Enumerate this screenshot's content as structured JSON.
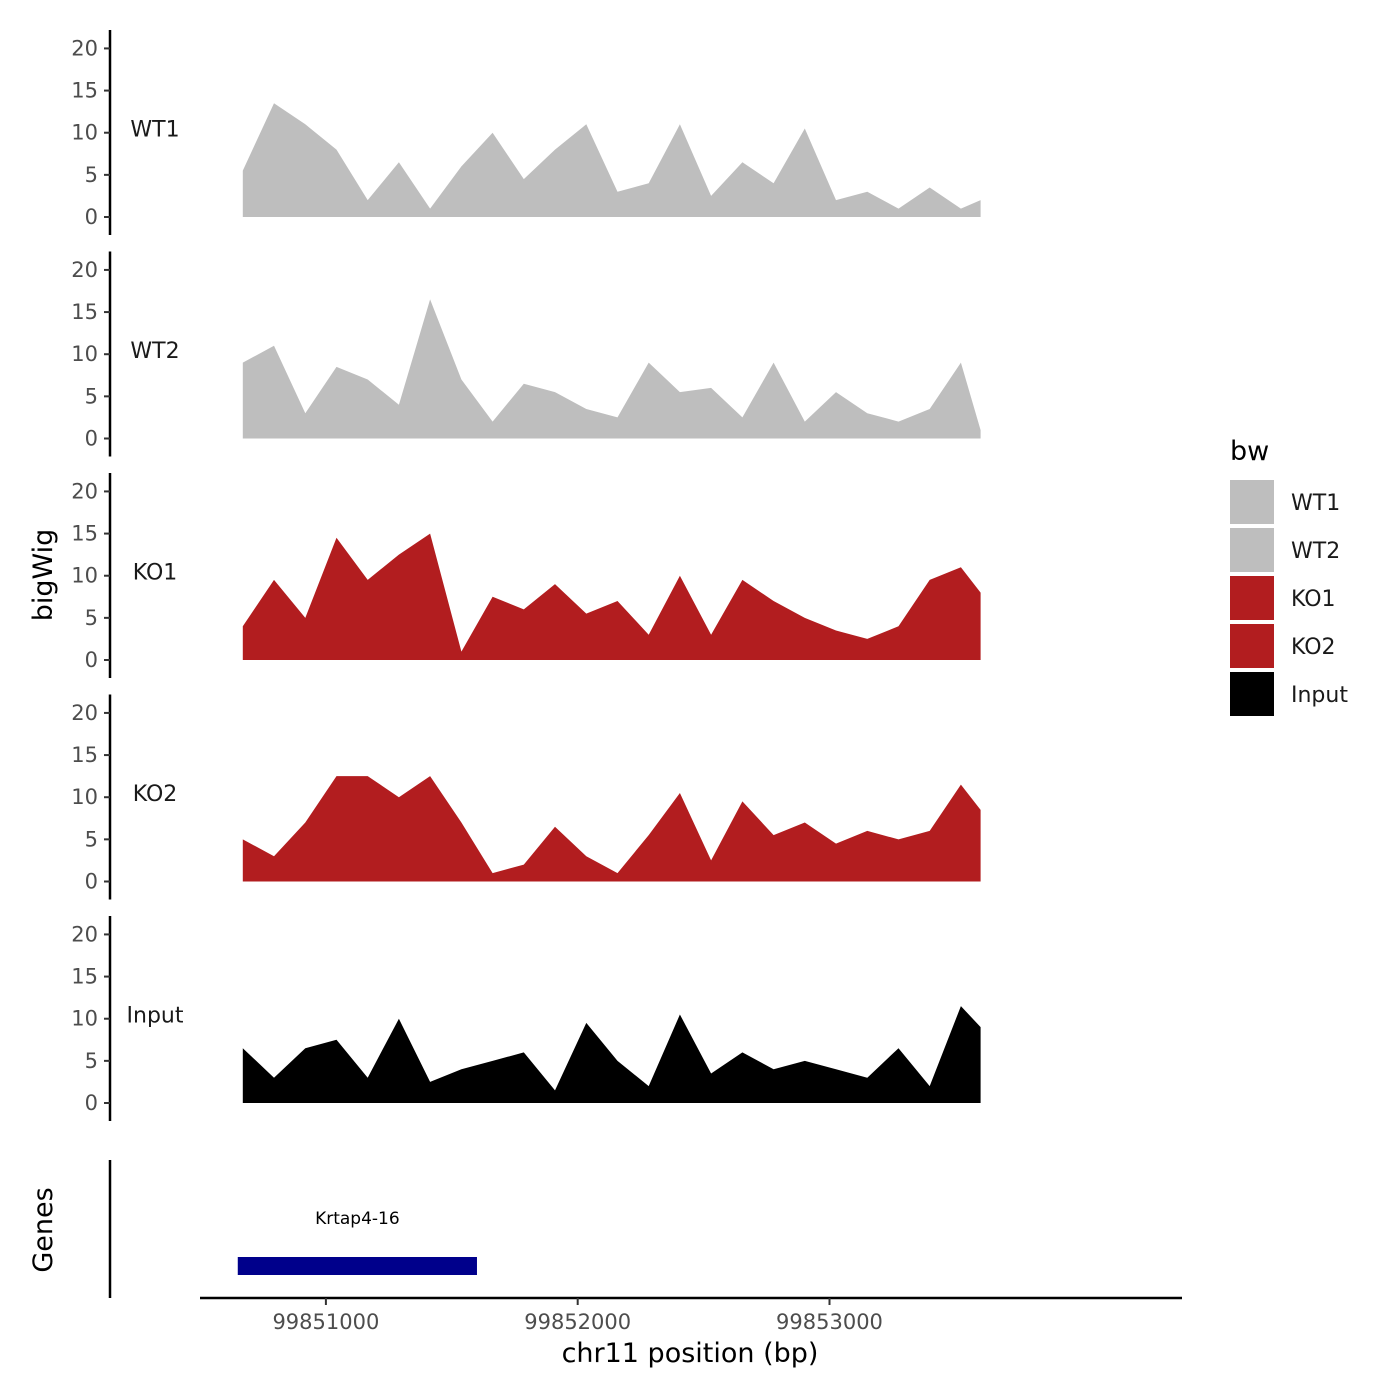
{
  "chart_data": {
    "type": "area",
    "xlabel": "chr11 position (bp)",
    "ylabel": "bigWig",
    "genes_label": "Genes",
    "xlim": [
      99850500,
      99854400
    ],
    "ylim": [
      0,
      21
    ],
    "y_ticks": [
      "0",
      "5",
      "10",
      "15",
      "20"
    ],
    "x_ticks": [
      {
        "value": 99851000,
        "label": "99851000"
      },
      {
        "value": 99852000,
        "label": "99852000"
      },
      {
        "value": 99853000,
        "label": "99853000"
      }
    ],
    "legend": {
      "title": "bw",
      "position": "right",
      "entries": [
        {
          "label": "WT1",
          "color": "#bebebe"
        },
        {
          "label": "WT2",
          "color": "#bebebe"
        },
        {
          "label": "KO1",
          "color": "#b21d1f"
        },
        {
          "label": "KO2",
          "color": "#b21d1f"
        },
        {
          "label": "Input",
          "color": "#000000"
        }
      ]
    },
    "x": [
      99850670,
      99850794,
      99850918,
      99851042,
      99851166,
      99851290,
      99851414,
      99851538,
      99851662,
      99851786,
      99851910,
      99852034,
      99852158,
      99852282,
      99852406,
      99852530,
      99852654,
      99852778,
      99852902,
      99853026,
      99853150,
      99853274,
      99853398,
      99853522,
      99853600
    ],
    "series": [
      {
        "name": "WT1",
        "color": "#bebebe",
        "values": [
          5.5,
          13.5,
          11.0,
          8.0,
          2.0,
          6.5,
          1.0,
          6.0,
          10.0,
          4.5,
          8.0,
          11.0,
          3.0,
          4.0,
          11.0,
          2.5,
          6.5,
          4.0,
          10.5,
          2.0,
          3.0,
          1.0,
          3.5,
          1.0,
          2.0
        ]
      },
      {
        "name": "WT2",
        "color": "#bebebe",
        "values": [
          9.0,
          11.0,
          3.0,
          8.5,
          7.0,
          4.0,
          16.5,
          7.0,
          2.0,
          6.5,
          5.5,
          3.5,
          2.5,
          9.0,
          5.5,
          6.0,
          2.5,
          9.0,
          2.0,
          5.5,
          3.0,
          2.0,
          3.5,
          9.0,
          1.0
        ]
      },
      {
        "name": "KO1",
        "color": "#b21d1f",
        "values": [
          4.0,
          9.5,
          5.0,
          14.5,
          9.5,
          12.5,
          15.0,
          1.0,
          7.5,
          6.0,
          9.0,
          5.5,
          7.0,
          3.0,
          10.0,
          3.0,
          9.5,
          7.0,
          5.0,
          3.5,
          2.5,
          4.0,
          9.5,
          11.0,
          8.0
        ]
      },
      {
        "name": "KO2",
        "color": "#b21d1f",
        "values": [
          5.0,
          3.0,
          7.0,
          12.5,
          12.5,
          10.0,
          12.5,
          7.0,
          1.0,
          2.0,
          6.5,
          3.0,
          1.0,
          5.5,
          10.5,
          2.5,
          9.5,
          5.5,
          7.0,
          4.5,
          6.0,
          5.0,
          6.0,
          11.5,
          8.5
        ]
      },
      {
        "name": "Input",
        "color": "#000000",
        "values": [
          6.5,
          3.0,
          6.5,
          7.5,
          3.0,
          10.0,
          2.5,
          4.0,
          5.0,
          6.0,
          1.5,
          9.5,
          5.0,
          2.0,
          10.5,
          3.5,
          6.0,
          4.0,
          5.0,
          4.0,
          3.0,
          6.5,
          2.0,
          11.5,
          9.0
        ]
      }
    ],
    "genes": [
      {
        "name": "Krtap4-16",
        "start": 99850650,
        "end": 99851600,
        "color": "#00008b"
      }
    ]
  }
}
